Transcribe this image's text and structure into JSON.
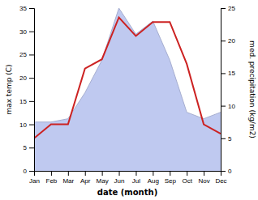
{
  "chart_data": {
    "type": "line",
    "xlabel": "date (month)",
    "ylabel": "max temp (C)",
    "y2label": "med. precipitation (kg/m2)",
    "categories": [
      "Jan",
      "Feb",
      "Mar",
      "Apr",
      "May",
      "Jun",
      "Jul",
      "Aug",
      "Sep",
      "Oct",
      "Nov",
      "Dec"
    ],
    "series": [
      {
        "type": "line",
        "color": "#cc2222",
        "values": [
          7,
          10,
          10,
          22,
          24,
          33,
          29,
          32,
          32,
          23,
          10,
          8
        ]
      },
      {
        "type": "area",
        "axis": "y2",
        "color": "#bfc9f0",
        "values": [
          7.5,
          7.5,
          8.0,
          12.0,
          17.0,
          25.0,
          21.0,
          23.0,
          17.0,
          9.0,
          8.0,
          9.0
        ]
      }
    ],
    "ylim": [
      0,
      35
    ],
    "yticks": [
      0,
      5,
      10,
      15,
      20,
      25,
      30,
      35
    ],
    "y2lim": [
      0,
      25
    ],
    "y2ticks": [
      0,
      5,
      10,
      15,
      20,
      25
    ],
    "grid": false
  }
}
